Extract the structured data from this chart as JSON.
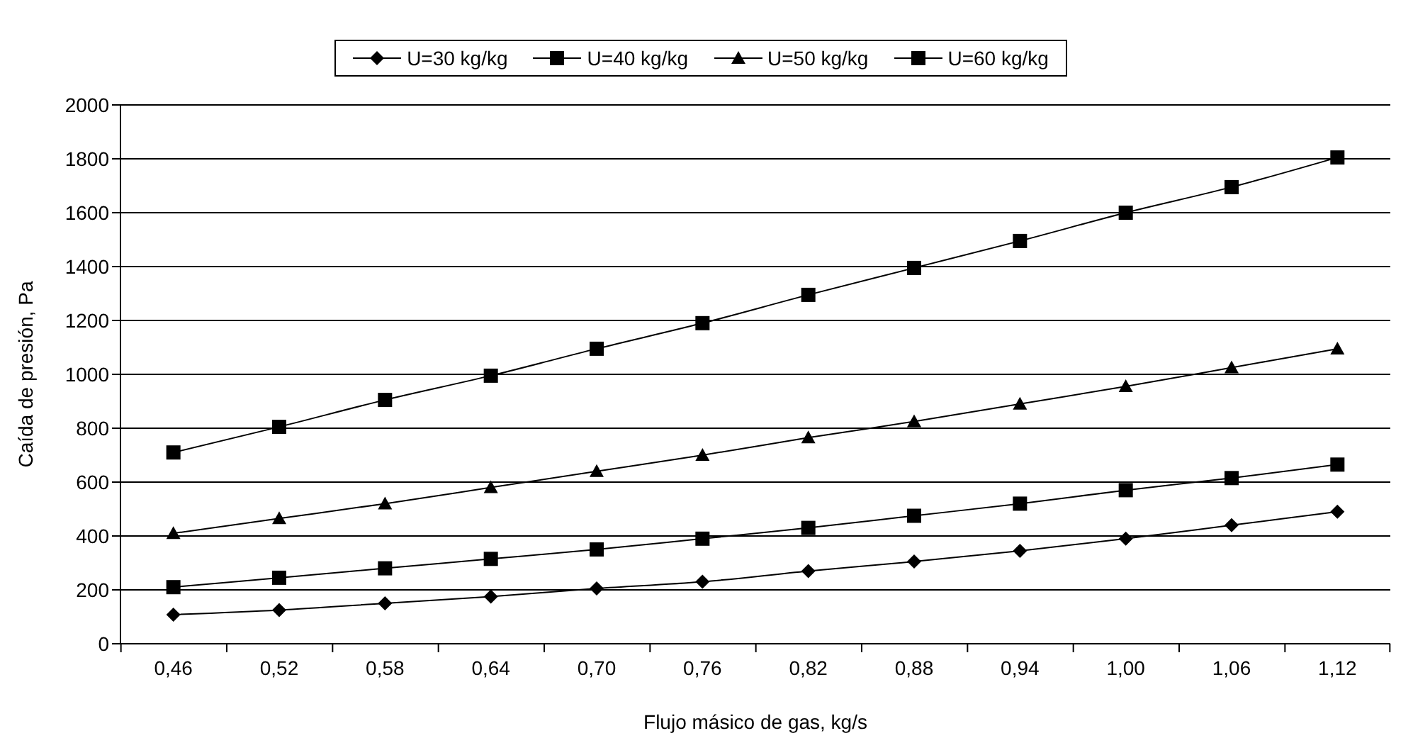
{
  "chart_data": {
    "type": "line",
    "xlabel": "Flujo másico de gas, kg/s",
    "ylabel": "Caída de presión, Pa",
    "categories": [
      "0,46",
      "0,52",
      "0,58",
      "0,64",
      "0,70",
      "0,76",
      "0,82",
      "0,88",
      "0,94",
      "1,00",
      "1,06",
      "1,12"
    ],
    "series": [
      {
        "name": "U=30 kg/kg",
        "color": "#000000",
        "marker": "diamond",
        "values": [
          108,
          125,
          150,
          175,
          205,
          230,
          270,
          305,
          345,
          390,
          440,
          490
        ]
      },
      {
        "name": "U=40 kg/kg",
        "color": "#000000",
        "marker": "square",
        "values": [
          210,
          245,
          280,
          315,
          350,
          390,
          430,
          475,
          520,
          570,
          615,
          665
        ]
      },
      {
        "name": "U=50 kg/kg",
        "color": "#000000",
        "marker": "triangle",
        "values": [
          410,
          465,
          520,
          580,
          640,
          700,
          765,
          825,
          890,
          955,
          1025,
          1095
        ]
      },
      {
        "name": "U=60 kg/kg",
        "color": "#000000",
        "marker": "square",
        "values": [
          710,
          805,
          905,
          995,
          1095,
          1190,
          1295,
          1395,
          1495,
          1600,
          1695,
          1805
        ]
      }
    ],
    "ylim": [
      0,
      2000
    ],
    "yticks": [
      0,
      200,
      400,
      600,
      800,
      1000,
      1200,
      1400,
      1600,
      1800,
      2000
    ],
    "grid": "y",
    "legend": "top",
    "line_style": "solid"
  }
}
